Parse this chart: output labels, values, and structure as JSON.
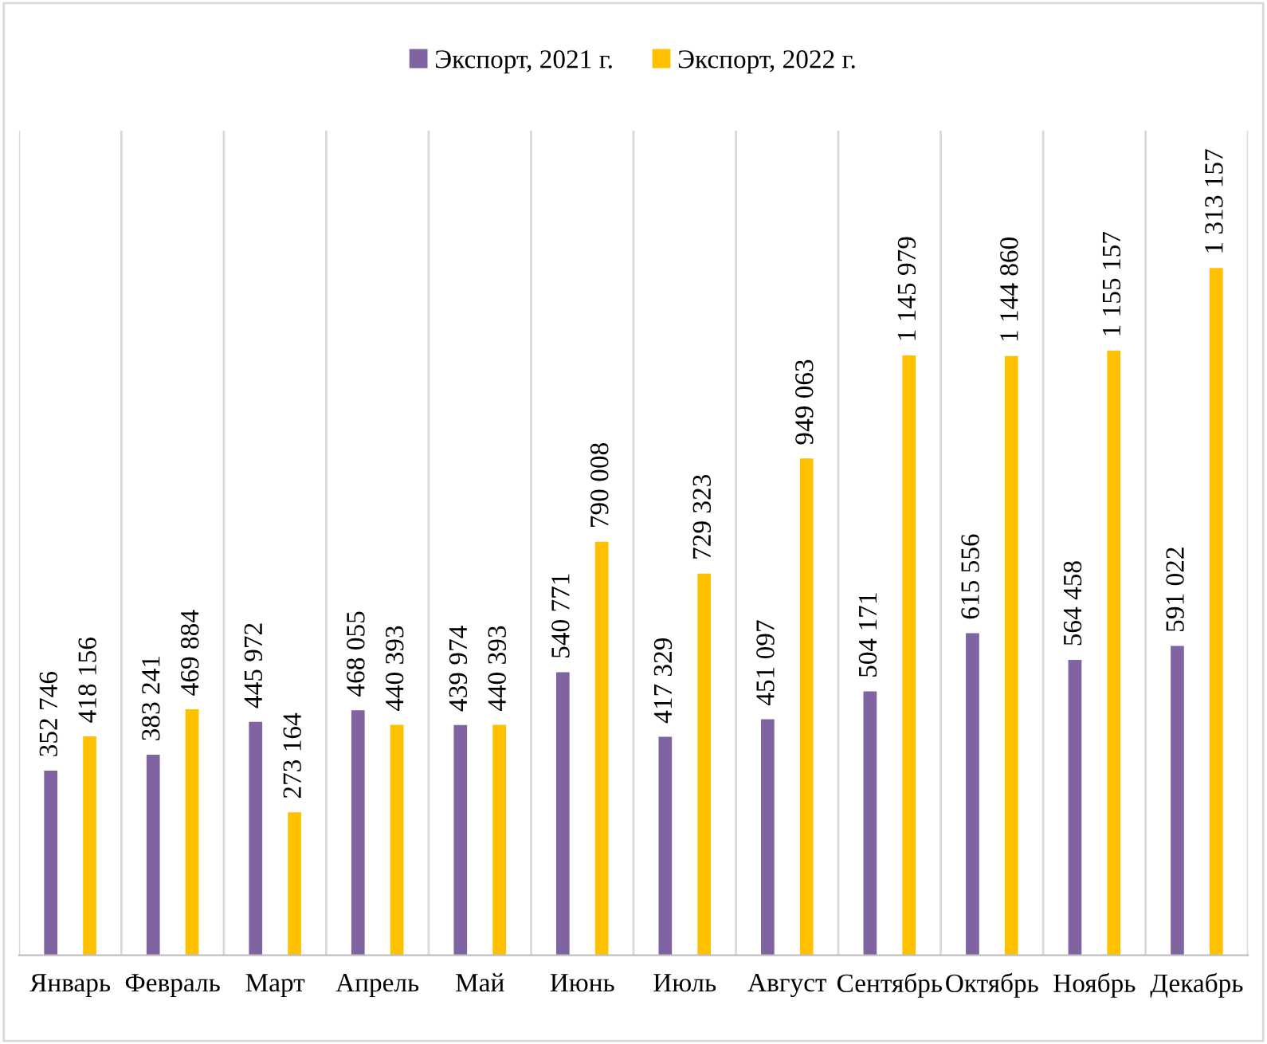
{
  "chart_data": {
    "type": "bar",
    "categories": [
      "Январь",
      "Февраль",
      "Март",
      "Апрель",
      "Май",
      "Июнь",
      "Июль",
      "Август",
      "Сентябрь",
      "Октябрь",
      "Ноябрь",
      "Декабрь"
    ],
    "series": [
      {
        "name": "Экспорт, 2021 г.",
        "color": "#8064a2",
        "values": [
          352746,
          383241,
          445972,
          468055,
          439974,
          540771,
          417329,
          451097,
          504171,
          615556,
          564458,
          591022
        ],
        "value_labels": [
          "352 746",
          "383 241",
          "445 972",
          "468 055",
          "439 974",
          "540 771",
          "417 329",
          "451 097",
          "504 171",
          "615 556",
          "564 458",
          "591 022"
        ]
      },
      {
        "name": "Экспорт, 2022 г.",
        "color": "#ffc000",
        "values": [
          418156,
          469884,
          273164,
          440393,
          440393,
          790008,
          729323,
          949063,
          1145979,
          1144860,
          1155157,
          1313157
        ],
        "value_labels": [
          "418 156",
          "469 884",
          "273 164",
          "440 393",
          "440 393",
          "790 008",
          "729 323",
          "949 063",
          "1 145 979",
          "1 144 860",
          "1 155 157",
          "1 313 157"
        ]
      }
    ],
    "legend": "top",
    "grid": "x"
  }
}
